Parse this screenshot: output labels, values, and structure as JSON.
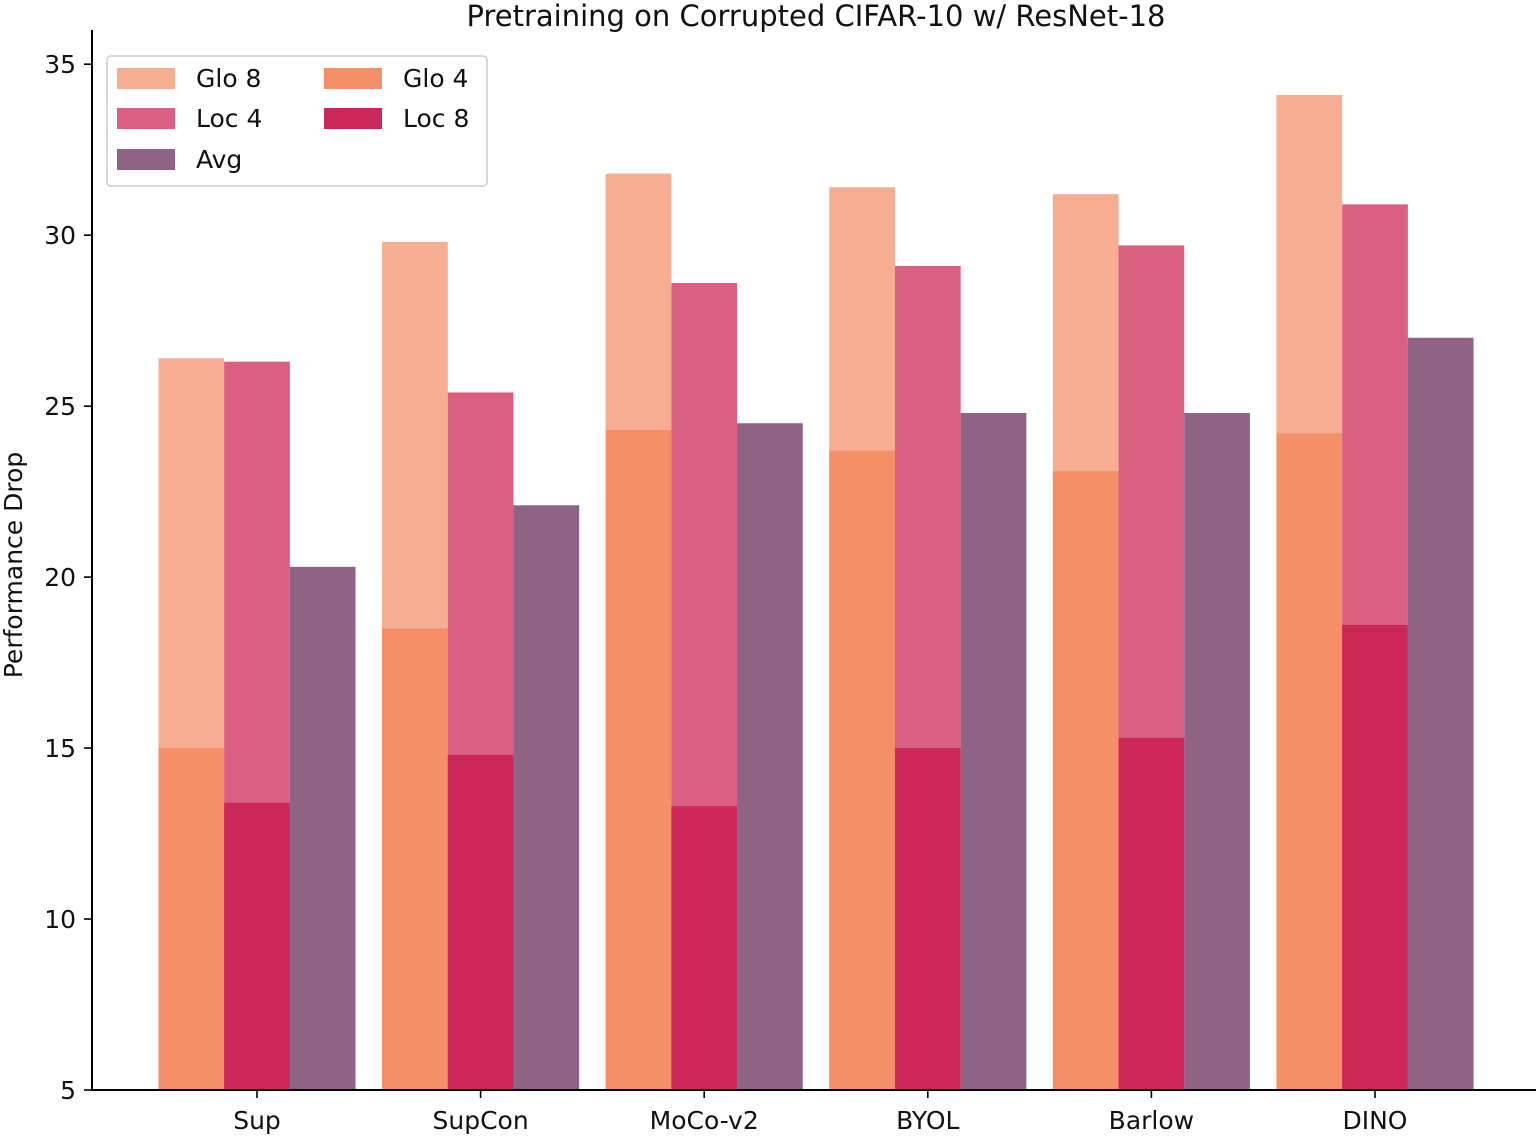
{
  "chart_data": {
    "type": "bar",
    "title": "Pretraining on Corrupted CIFAR-10 w/ ResNet-18",
    "xlabel": "",
    "ylabel": "Performance Drop",
    "ylim": [
      5,
      36
    ],
    "yticks": [
      5,
      10,
      15,
      20,
      25,
      30,
      35
    ],
    "categories": [
      "Sup",
      "SupCon",
      "MoCo-v2",
      "BYOL",
      "Barlow",
      "DINO"
    ],
    "series": [
      {
        "name": "Glo 8",
        "color": "#f7ad92",
        "slot": 0,
        "values": [
          26.4,
          29.8,
          31.8,
          31.4,
          31.2,
          34.1
        ]
      },
      {
        "name": "Glo 4",
        "color": "#f48f68",
        "slot": 0,
        "values": [
          15.0,
          18.5,
          24.3,
          23.7,
          23.1,
          24.2
        ]
      },
      {
        "name": "Loc 4",
        "color": "#db5f83",
        "slot": 1,
        "values": [
          26.3,
          25.4,
          28.6,
          29.1,
          29.7,
          30.9
        ]
      },
      {
        "name": "Loc 8",
        "color": "#cb2758",
        "slot": 1,
        "values": [
          13.4,
          14.8,
          13.3,
          15.0,
          15.3,
          18.6
        ]
      },
      {
        "name": "Avg",
        "color": "#8e6386",
        "slot": 2,
        "values": [
          20.3,
          22.1,
          24.5,
          24.8,
          24.8,
          27.0
        ]
      }
    ],
    "legend": {
      "placement": "top-left",
      "rows": [
        [
          "Glo 8",
          "Glo 4"
        ],
        [
          "Loc 4",
          "Loc 8"
        ],
        [
          "Avg"
        ]
      ]
    },
    "grid": false
  }
}
